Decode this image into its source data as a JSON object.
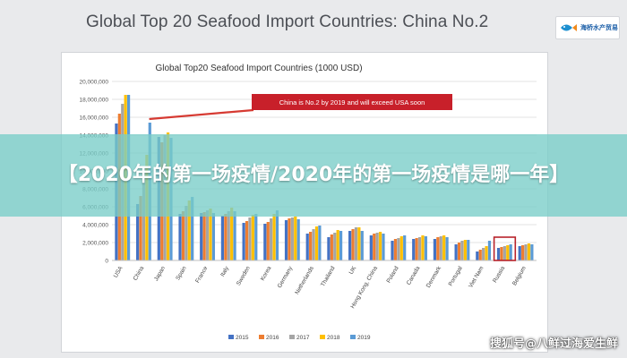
{
  "slide_title": "Global Top 20 Seafood Import Countries: China No.2",
  "logo": {
    "icon": "fish-logo-icon",
    "text": "海桥水产贸易"
  },
  "banner_text": "【2020年的第一场疫情/2020年的第一场疫情是哪一年】",
  "watermark": "搜狐号@八鲜过海爱生鲜",
  "colors": {
    "callout": "#c8202a",
    "highlight_box": "#b8232b",
    "arrow": "#d63a32"
  },
  "chart_data": {
    "type": "bar",
    "title": "Global Top20 Seafood Import Countries (1000 USD)",
    "annotation": "China is No.2 by 2019 and will exceed USA soon",
    "highlight_category": "Russia",
    "ylim": [
      0,
      20000000
    ],
    "yticks": [
      "0",
      "2,000,000",
      "4,000,000",
      "6,000,000",
      "8,000,000",
      "10,000,000",
      "12,000,000",
      "14,000,000",
      "16,000,000",
      "18,000,000",
      "20,000,000"
    ],
    "legend_position": "bottom",
    "categories": [
      "USA",
      "China",
      "Japan",
      "Spain",
      "France",
      "Italy",
      "Sweden",
      "Korea",
      "Germany",
      "Netherlands",
      "Thailand",
      "UK",
      "Hong Kong, China",
      "Poland",
      "Canada",
      "Denmark",
      "Portugal",
      "Viet Nam",
      "Russia",
      "Belgium"
    ],
    "series": [
      {
        "name": "2015",
        "color": "#4472c4",
        "values": [
          15300000,
          6300000,
          13800000,
          5200000,
          5300000,
          5000000,
          4200000,
          4100000,
          4500000,
          3000000,
          2600000,
          3300000,
          2800000,
          2200000,
          2400000,
          2400000,
          1800000,
          1000000,
          1400000,
          1600000
        ]
      },
      {
        "name": "2016",
        "color": "#ed7d31",
        "values": [
          16400000,
          7200000,
          13200000,
          5500000,
          5400000,
          5200000,
          4400000,
          4300000,
          4700000,
          3200000,
          2900000,
          3500000,
          3000000,
          2400000,
          2500000,
          2600000,
          2000000,
          1200000,
          1500000,
          1700000
        ]
      },
      {
        "name": "2017",
        "color": "#a5a5a5",
        "values": [
          17500000,
          9800000,
          14000000,
          6100000,
          5600000,
          5500000,
          4800000,
          4700000,
          4800000,
          3500000,
          3100000,
          3700000,
          3100000,
          2500000,
          2600000,
          2700000,
          2200000,
          1400000,
          1600000,
          1800000
        ]
      },
      {
        "name": "2018",
        "color": "#ffc000",
        "values": [
          18500000,
          11800000,
          14300000,
          6700000,
          5800000,
          5900000,
          5100000,
          5200000,
          4900000,
          3800000,
          3400000,
          3700000,
          3200000,
          2700000,
          2800000,
          2800000,
          2300000,
          1600000,
          1700000,
          1900000
        ]
      },
      {
        "name": "2019",
        "color": "#5b9bd5",
        "values": [
          18500000,
          15400000,
          13700000,
          7100000,
          5300000,
          5500000,
          5200000,
          5600000,
          4600000,
          3900000,
          3300000,
          3300000,
          3000000,
          2800000,
          2700000,
          2600000,
          2300000,
          2200000,
          1800000,
          1800000
        ]
      }
    ]
  }
}
